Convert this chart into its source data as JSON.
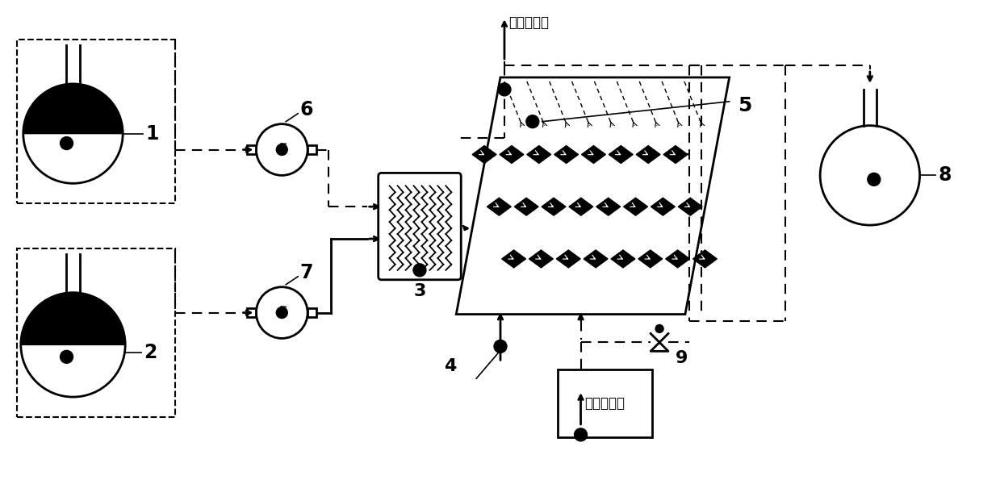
{
  "bg_color": "#ffffff",
  "label1": "1",
  "label2": "2",
  "label3": "3",
  "label4": "4",
  "label5": "5",
  "label6": "6",
  "label7": "7",
  "label8": "8",
  "label9": "9",
  "text_out": "控温介质出",
  "text_in": "控温介质进",
  "lw_main": 2.0,
  "lw_dash": 1.5,
  "lw_thin": 1.2
}
